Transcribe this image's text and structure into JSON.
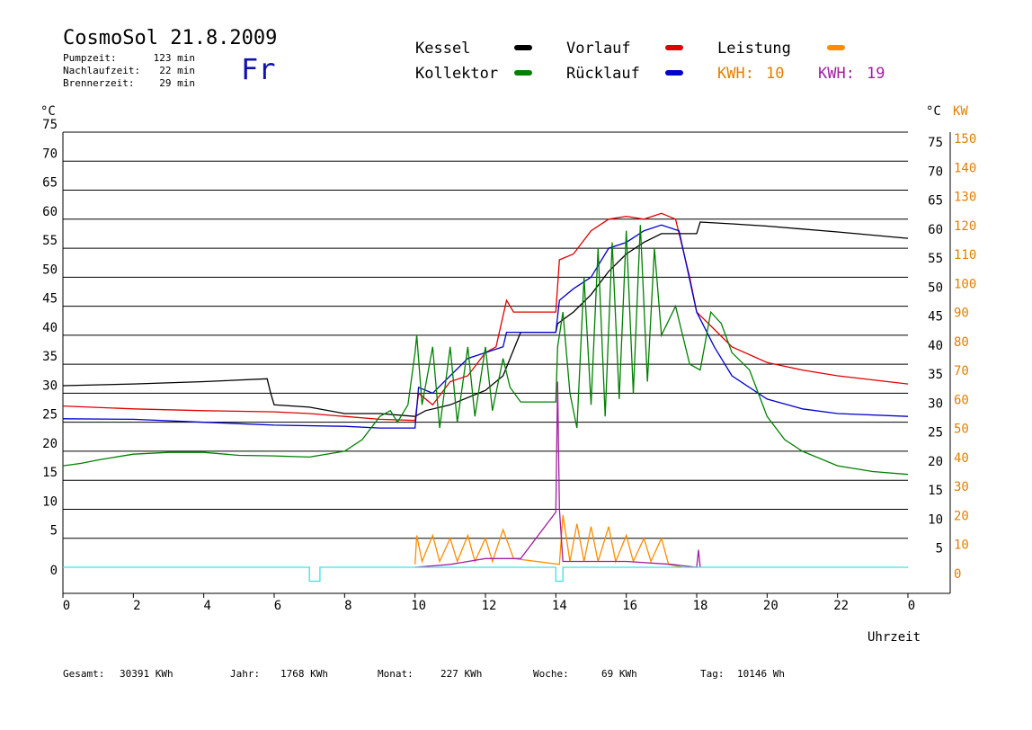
{
  "header": {
    "title": "CosmoSol 21.8.2009",
    "day": "Fr",
    "pump_label": "Pumpzeit:",
    "pump_value": "123 min",
    "nachlauf_label": "Nachlaufzeit:",
    "nachlauf_value": "22 min",
    "brenner_label": "Brennerzeit:",
    "brenner_value": "29 min"
  },
  "legend": {
    "kessel": "Kessel",
    "kollektor": "Kollektor",
    "vorlauf": "Vorlauf",
    "ruecklauf": "Rücklauf",
    "leistung": "Leistung",
    "kwh1_label": "KWH:",
    "kwh1_value": "10",
    "kwh2_label": "KWH:",
    "kwh2_value": "19"
  },
  "axes": {
    "left_unit": "°C",
    "right_unit_c": "°C",
    "right_unit_kw": "KW",
    "x_title": "Uhrzeit"
  },
  "totals": {
    "gesamt_label": "Gesamt:",
    "gesamt_value": "30391 KWh",
    "jahr_label": "Jahr:",
    "jahr_value": "1768 KWh",
    "monat_label": "Monat:",
    "monat_value": "227 KWh",
    "woche_label": "Woche:",
    "woche_value": "69 KWh",
    "tag_label": "Tag:",
    "tag_value": "10146 Wh"
  },
  "colors": {
    "kessel": "#000000",
    "kollektor": "#008000",
    "vorlauf": "#e00000",
    "ruecklauf": "#0000d0",
    "leistung": "#ff8c00",
    "kwh2": "#a020a0",
    "pump": "#40e0e0",
    "axis_right": "#e08000"
  },
  "chart_data": {
    "type": "line",
    "xlabel": "Uhrzeit",
    "ylabel": "°C",
    "y2label": "KW",
    "xlim": [
      0,
      24
    ],
    "ylim": [
      0,
      75
    ],
    "y2lim": [
      0,
      150
    ],
    "x_ticks": [
      "0",
      "2",
      "4",
      "6",
      "8",
      "10",
      "12",
      "14",
      "16",
      "18",
      "20",
      "22",
      "0"
    ],
    "y_ticks": [
      "0",
      "5",
      "10",
      "15",
      "20",
      "25",
      "30",
      "35",
      "40",
      "45",
      "50",
      "55",
      "60",
      "65",
      "70",
      "75"
    ],
    "y_ticks_right": [
      "5",
      "10",
      "15",
      "20",
      "25",
      "30",
      "35",
      "40",
      "45",
      "50",
      "55",
      "60",
      "65",
      "70",
      "75"
    ],
    "y2_ticks": [
      "0",
      "10",
      "20",
      "30",
      "40",
      "50",
      "60",
      "70",
      "80",
      "90",
      "100",
      "110",
      "120",
      "130",
      "140",
      "150"
    ],
    "grid": true,
    "series": [
      {
        "name": "Kessel",
        "color": "#000000",
        "points": [
          [
            0,
            31.3
          ],
          [
            2,
            31.6
          ],
          [
            4,
            32
          ],
          [
            5.8,
            32.5
          ],
          [
            5.9,
            30
          ],
          [
            6,
            28
          ],
          [
            7,
            27.6
          ],
          [
            8,
            26.5
          ],
          [
            9,
            26.5
          ],
          [
            10,
            26
          ],
          [
            10.3,
            27
          ],
          [
            11,
            28
          ],
          [
            12,
            30.5
          ],
          [
            12.5,
            33
          ],
          [
            13,
            40.5
          ],
          [
            14,
            40.5
          ],
          [
            14.05,
            42
          ],
          [
            14.5,
            44
          ],
          [
            15,
            47
          ],
          [
            15.5,
            51
          ],
          [
            16,
            54
          ],
          [
            16.5,
            56
          ],
          [
            17,
            57.5
          ],
          [
            17.6,
            57.5
          ],
          [
            18,
            57.5
          ],
          [
            18.1,
            59.5
          ],
          [
            19,
            59.2
          ],
          [
            20,
            58.8
          ],
          [
            22,
            57.8
          ],
          [
            24,
            56.7
          ]
        ]
      },
      {
        "name": "Vorlauf",
        "color": "#e00000",
        "points": [
          [
            0,
            27.8
          ],
          [
            2,
            27.3
          ],
          [
            4,
            27
          ],
          [
            6,
            26.8
          ],
          [
            7,
            26.5
          ],
          [
            8,
            26
          ],
          [
            9,
            25.5
          ],
          [
            10,
            25.3
          ],
          [
            10.1,
            30
          ],
          [
            10.5,
            28
          ],
          [
            11,
            32
          ],
          [
            11.5,
            33
          ],
          [
            12,
            37
          ],
          [
            12.3,
            38
          ],
          [
            12.6,
            46
          ],
          [
            12.8,
            44
          ],
          [
            14,
            44
          ],
          [
            14.1,
            53
          ],
          [
            14.5,
            54
          ],
          [
            15,
            58
          ],
          [
            15.5,
            60
          ],
          [
            16,
            60.5
          ],
          [
            16.5,
            60
          ],
          [
            17,
            61
          ],
          [
            17.4,
            60
          ],
          [
            17.8,
            50
          ],
          [
            18,
            44
          ],
          [
            18.5,
            41
          ],
          [
            19,
            38
          ],
          [
            20,
            35.3
          ],
          [
            21,
            34
          ],
          [
            22,
            33
          ],
          [
            24,
            31.6
          ]
        ]
      },
      {
        "name": "Rücklauf",
        "color": "#0000d0",
        "points": [
          [
            0,
            25.6
          ],
          [
            2,
            25.5
          ],
          [
            4,
            25
          ],
          [
            6,
            24.5
          ],
          [
            8,
            24.3
          ],
          [
            9,
            24
          ],
          [
            10,
            24
          ],
          [
            10.1,
            31
          ],
          [
            10.5,
            30
          ],
          [
            11,
            33
          ],
          [
            11.5,
            36
          ],
          [
            12,
            37
          ],
          [
            12.5,
            38
          ],
          [
            12.6,
            40.5
          ],
          [
            14,
            40.5
          ],
          [
            14.1,
            46
          ],
          [
            14.5,
            48
          ],
          [
            15,
            50
          ],
          [
            15.5,
            55
          ],
          [
            16,
            56
          ],
          [
            16.5,
            58
          ],
          [
            17,
            59
          ],
          [
            17.5,
            58
          ],
          [
            18,
            44
          ],
          [
            18.5,
            38
          ],
          [
            19,
            33
          ],
          [
            20,
            29
          ],
          [
            21,
            27.3
          ],
          [
            22,
            26.5
          ],
          [
            24,
            26
          ]
        ]
      },
      {
        "name": "Kollektor",
        "color": "#008000",
        "points": [
          [
            0,
            17.5
          ],
          [
            0.5,
            17.9
          ],
          [
            1,
            18.5
          ],
          [
            2,
            19.5
          ],
          [
            3,
            19.8
          ],
          [
            4,
            19.8
          ],
          [
            5,
            19.3
          ],
          [
            6,
            19.2
          ],
          [
            7,
            19
          ],
          [
            8,
            20
          ],
          [
            8.5,
            22
          ],
          [
            9,
            26
          ],
          [
            9.3,
            27
          ],
          [
            9.5,
            25
          ],
          [
            9.8,
            28
          ],
          [
            10,
            37
          ],
          [
            10.05,
            40
          ],
          [
            10.2,
            28
          ],
          [
            10.5,
            38
          ],
          [
            10.7,
            24
          ],
          [
            11,
            38
          ],
          [
            11.2,
            25
          ],
          [
            11.5,
            38
          ],
          [
            11.7,
            26
          ],
          [
            12,
            38
          ],
          [
            12.2,
            27
          ],
          [
            12.5,
            36
          ],
          [
            12.7,
            31
          ],
          [
            13,
            28.5
          ],
          [
            14,
            28.5
          ],
          [
            14.05,
            38
          ],
          [
            14.2,
            44
          ],
          [
            14.4,
            30
          ],
          [
            14.6,
            24
          ],
          [
            14.8,
            50
          ],
          [
            15,
            28
          ],
          [
            15.2,
            55
          ],
          [
            15.4,
            26
          ],
          [
            15.6,
            56
          ],
          [
            15.8,
            29
          ],
          [
            16,
            58
          ],
          [
            16.2,
            30
          ],
          [
            16.4,
            59
          ],
          [
            16.6,
            32
          ],
          [
            16.8,
            55
          ],
          [
            17,
            40
          ],
          [
            17.4,
            45
          ],
          [
            17.8,
            35
          ],
          [
            18.1,
            34
          ],
          [
            18.4,
            44
          ],
          [
            18.7,
            42
          ],
          [
            19,
            37
          ],
          [
            19.5,
            34
          ],
          [
            20,
            26
          ],
          [
            20.5,
            22
          ],
          [
            21,
            20
          ],
          [
            22,
            17.5
          ],
          [
            23,
            16.5
          ],
          [
            24,
            16
          ]
        ]
      },
      {
        "name": "Leistung",
        "color": "#ff8c00",
        "points": [
          [
            10,
            0.5
          ],
          [
            10.05,
            5.5
          ],
          [
            10.2,
            1
          ],
          [
            10.5,
            5.5
          ],
          [
            10.7,
            1
          ],
          [
            11,
            5
          ],
          [
            11.2,
            1
          ],
          [
            11.5,
            5.5
          ],
          [
            11.7,
            1
          ],
          [
            12,
            5
          ],
          [
            12.2,
            1
          ],
          [
            12.5,
            6.5
          ],
          [
            12.8,
            1.5
          ],
          [
            14.1,
            0.5
          ],
          [
            14.2,
            9
          ],
          [
            14.4,
            1
          ],
          [
            14.6,
            7.5
          ],
          [
            14.8,
            1
          ],
          [
            15,
            7
          ],
          [
            15.2,
            1
          ],
          [
            15.5,
            7
          ],
          [
            15.7,
            1
          ],
          [
            16,
            5.5
          ],
          [
            16.2,
            1
          ],
          [
            16.5,
            5
          ],
          [
            16.7,
            1
          ],
          [
            17,
            5
          ],
          [
            17.2,
            0.5
          ],
          [
            17.6,
            0
          ]
        ]
      },
      {
        "name": "KWH",
        "color": "#a020a0",
        "points": [
          [
            10,
            0
          ],
          [
            11,
            0.5
          ],
          [
            12,
            1.5
          ],
          [
            12.8,
            1.5
          ],
          [
            13,
            1.5
          ],
          [
            14,
            9.5
          ],
          [
            14.05,
            32
          ],
          [
            14.1,
            10
          ],
          [
            14.2,
            1
          ],
          [
            15,
            1
          ],
          [
            16,
            1
          ],
          [
            17.3,
            0.5
          ],
          [
            18,
            0
          ],
          [
            18.05,
            3
          ],
          [
            18.1,
            0
          ]
        ]
      },
      {
        "name": "Pumpe",
        "color": "#40e0e0",
        "points": [
          [
            0,
            0
          ],
          [
            7,
            0
          ],
          [
            7,
            -2.4
          ],
          [
            7.3,
            -2.4
          ],
          [
            7.3,
            0
          ],
          [
            14,
            0
          ],
          [
            14,
            -2.4
          ],
          [
            14.2,
            -2.4
          ],
          [
            14.2,
            0
          ],
          [
            24,
            0
          ]
        ]
      }
    ]
  }
}
